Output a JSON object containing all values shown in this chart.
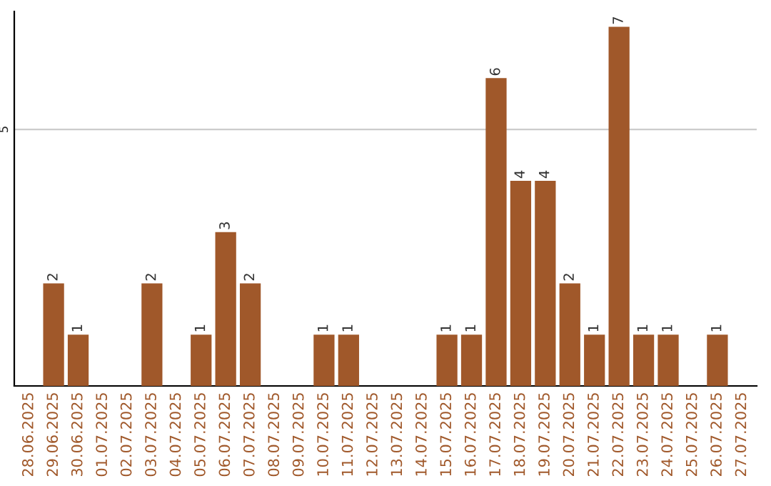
{
  "chart_data": {
    "type": "bar",
    "categories": [
      "28.06.2025",
      "29.06.2025",
      "30.06.2025",
      "01.07.2025",
      "02.07.2025",
      "03.07.2025",
      "04.07.2025",
      "05.07.2025",
      "06.07.2025",
      "07.07.2025",
      "08.07.2025",
      "09.07.2025",
      "10.07.2025",
      "11.07.2025",
      "12.07.2025",
      "13.07.2025",
      "14.07.2025",
      "15.07.2025",
      "16.07.2025",
      "17.07.2025",
      "18.07.2025",
      "19.07.2025",
      "20.07.2025",
      "21.07.2025",
      "22.07.2025",
      "23.07.2025",
      "24.07.2025",
      "25.07.2025",
      "26.07.2025",
      "27.07.2025"
    ],
    "values": [
      null,
      2,
      1,
      null,
      null,
      2,
      null,
      1,
      3,
      2,
      null,
      null,
      1,
      1,
      null,
      null,
      null,
      1,
      1,
      6,
      4,
      4,
      2,
      1,
      7,
      1,
      1,
      null,
      1,
      null
    ],
    "value_labels": [
      null,
      "2",
      "1",
      null,
      null,
      "2",
      null,
      "1",
      "3",
      "2",
      null,
      null,
      "1",
      "1",
      null,
      null,
      null,
      "1",
      "1",
      "6",
      "4",
      "4",
      "2",
      "1",
      "7",
      "1",
      "1",
      null,
      "1",
      null
    ],
    "color": "#a0582a",
    "ylim": [
      0,
      7.3
    ],
    "yticks": [
      5
    ],
    "grid": "y"
  }
}
